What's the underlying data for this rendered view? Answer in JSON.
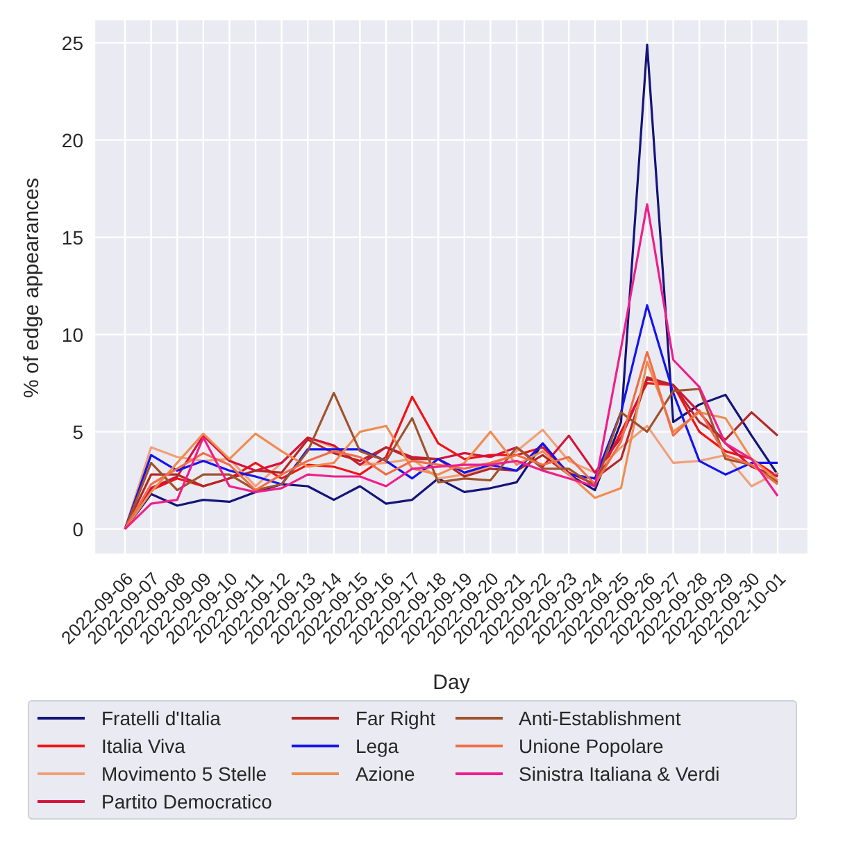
{
  "chart_data": {
    "type": "line",
    "xlabel": "Day",
    "ylabel": "% of edge appearances",
    "categories": [
      "2022-09-06",
      "2022-09-07",
      "2022-09-08",
      "2022-09-09",
      "2022-09-10",
      "2022-09-11",
      "2022-09-12",
      "2022-09-13",
      "2022-09-14",
      "2022-09-15",
      "2022-09-16",
      "2022-09-17",
      "2022-09-18",
      "2022-09-19",
      "2022-09-20",
      "2022-09-21",
      "2022-09-22",
      "2022-09-23",
      "2022-09-24",
      "2022-09-25",
      "2022-09-26",
      "2022-09-27",
      "2022-09-28",
      "2022-09-29",
      "2022-09-30",
      "2022-10-01"
    ],
    "ylim": [
      -1.3,
      26.2
    ],
    "yticks": [
      0,
      5,
      10,
      15,
      20,
      25
    ],
    "grid": true,
    "legend": "bottom",
    "marker": "none",
    "series": [
      {
        "name": "Fratelli d'Italia",
        "color": "#14147a",
        "values": [
          0,
          1.8,
          1.2,
          1.5,
          1.4,
          1.9,
          2.3,
          2.2,
          1.5,
          2.2,
          1.3,
          1.5,
          2.6,
          1.9,
          2.1,
          2.4,
          4.4,
          2.8,
          2.0,
          5.5,
          24.9,
          5.5,
          6.4,
          6.9,
          4.8,
          2.8
        ]
      },
      {
        "name": "Italia Viva",
        "color": "#f01414",
        "values": [
          0,
          2.0,
          2.6,
          2.2,
          2.6,
          3.4,
          2.6,
          3.3,
          3.2,
          2.8,
          3.7,
          6.8,
          4.4,
          3.6,
          3.8,
          3.8,
          4.2,
          2.9,
          2.3,
          5.0,
          7.5,
          7.4,
          5.0,
          4.0,
          3.6,
          2.7
        ]
      },
      {
        "name": "Movimento 5 Stelle",
        "color": "#f0a078",
        "values": [
          0,
          4.2,
          3.7,
          3.5,
          3.6,
          2.2,
          3.4,
          4.7,
          4.2,
          3.3,
          3.4,
          3.6,
          2.6,
          2.8,
          3.2,
          4.0,
          5.1,
          3.5,
          2.9,
          4.2,
          5.3,
          3.4,
          3.5,
          3.8,
          2.2,
          2.9
        ]
      },
      {
        "name": "Partito Democratico",
        "color": "#d2143c",
        "values": [
          0,
          2.1,
          2.7,
          4.8,
          3.5,
          3.0,
          3.4,
          4.7,
          4.3,
          3.3,
          4.2,
          3.7,
          3.6,
          3.9,
          3.7,
          4.2,
          3.2,
          4.8,
          2.9,
          4.7,
          7.7,
          7.4,
          6.0,
          4.4,
          3.2,
          2.7
        ]
      },
      {
        "name": "Far Right",
        "color": "#b42828",
        "values": [
          0,
          2.8,
          2.8,
          2.2,
          2.6,
          3.0,
          2.9,
          4.6,
          3.9,
          3.5,
          4.2,
          3.6,
          3.6,
          2.7,
          3.1,
          3.0,
          3.8,
          2.8,
          2.6,
          3.6,
          7.8,
          7.4,
          5.5,
          4.6,
          6.0,
          4.8
        ]
      },
      {
        "name": "Lega",
        "color": "#1414f0",
        "values": [
          0,
          3.8,
          3.0,
          3.5,
          3.0,
          2.7,
          2.3,
          4.1,
          4.1,
          4.1,
          3.5,
          2.6,
          3.6,
          2.9,
          3.3,
          3.0,
          4.4,
          2.8,
          2.6,
          6.0,
          11.5,
          7.0,
          3.5,
          2.8,
          3.4,
          3.4
        ]
      },
      {
        "name": "Azione",
        "color": "#f08c50",
        "values": [
          0,
          1.9,
          3.4,
          4.9,
          3.6,
          4.9,
          4.0,
          3.2,
          3.4,
          5.0,
          5.3,
          3.1,
          2.8,
          3.4,
          5.0,
          3.3,
          4.0,
          2.8,
          1.6,
          2.1,
          8.6,
          5.0,
          6.0,
          5.7,
          3.6,
          2.5
        ]
      },
      {
        "name": "Anti-Establishment",
        "color": "#a0522d",
        "values": [
          0,
          3.4,
          2.0,
          2.8,
          2.8,
          2.0,
          2.3,
          4.0,
          7.0,
          4.0,
          3.5,
          5.7,
          2.4,
          2.6,
          2.5,
          4.2,
          3.1,
          3.1,
          2.2,
          6.0,
          5.0,
          7.1,
          7.2,
          3.6,
          3.3,
          2.4
        ]
      },
      {
        "name": "Unione Popolare",
        "color": "#f06e46",
        "values": [
          0,
          2.3,
          3.1,
          3.9,
          3.3,
          2.0,
          2.8,
          3.5,
          4.0,
          3.7,
          2.8,
          3.5,
          3.3,
          3.1,
          3.4,
          3.8,
          3.3,
          3.7,
          2.3,
          4.5,
          9.1,
          4.8,
          6.1,
          3.8,
          3.3,
          2.3
        ]
      },
      {
        "name": "Sinistra Italiana & Verdi",
        "color": "#f01e8c",
        "values": [
          0,
          1.3,
          1.5,
          4.7,
          2.2,
          1.9,
          2.1,
          2.8,
          2.7,
          2.7,
          2.2,
          3.1,
          3.2,
          3.3,
          3.3,
          3.5,
          3.0,
          2.6,
          2.2,
          9.3,
          16.7,
          8.7,
          7.3,
          4.4,
          3.6,
          1.7
        ]
      }
    ]
  }
}
